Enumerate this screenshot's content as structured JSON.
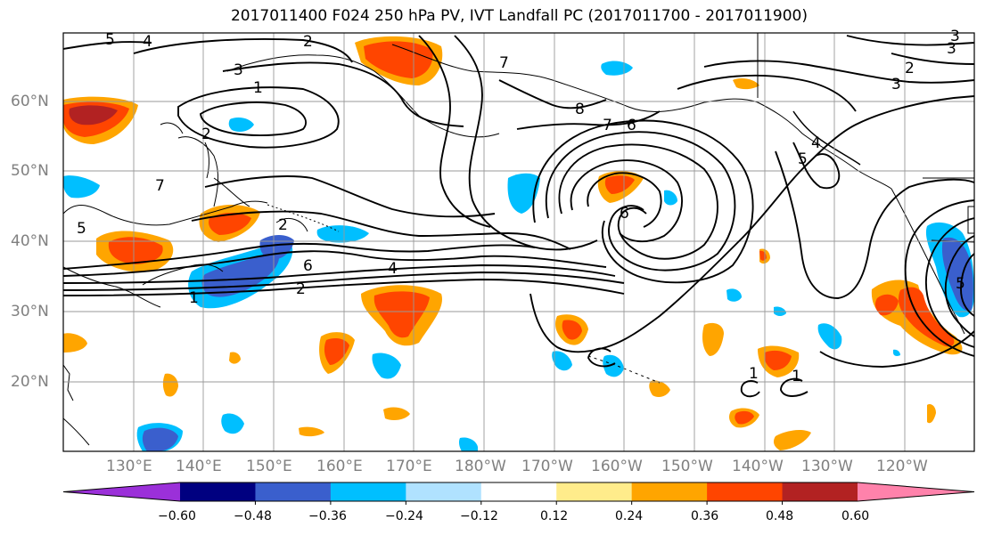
{
  "title": "2017011400 F024 250 hPa PV, IVT Landfall PC (2017011700 - 2017011900)",
  "lat_labels": [
    "60°N",
    "50°N",
    "40°N",
    "30°N",
    "20°N"
  ],
  "lon_labels": [
    "130°E",
    "140°E",
    "150°E",
    "160°E",
    "170°E",
    "180°W",
    "170°W",
    "160°W",
    "150°W",
    "140°W",
    "130°W",
    "120°W"
  ],
  "contour_labels": [
    "5",
    "4",
    "2",
    "3",
    "1",
    "2",
    "2",
    "7",
    "8",
    "7",
    "6",
    "5",
    "4",
    "6",
    "6",
    "4",
    "2",
    "1",
    "7",
    "1",
    "1",
    "5",
    "3",
    "2",
    "3",
    "3",
    "5"
  ],
  "colorbar": {
    "ticks": [
      "−0.60",
      "−0.48",
      "−0.36",
      "−0.24",
      "−0.12",
      "0.12",
      "0.24",
      "0.36",
      "0.48",
      "0.60"
    ],
    "colors": [
      "#9b30d9",
      "#000080",
      "#3a5fcd",
      "#00bfff",
      "#b0e2ff",
      "#ffffff",
      "#ffec8b",
      "#ffa500",
      "#ff4500",
      "#b22222",
      "#ff82ab"
    ]
  },
  "colors": {
    "axis_label": "#808080",
    "contour": "#000000",
    "coastline": "#000000",
    "grid": "#999999"
  }
}
